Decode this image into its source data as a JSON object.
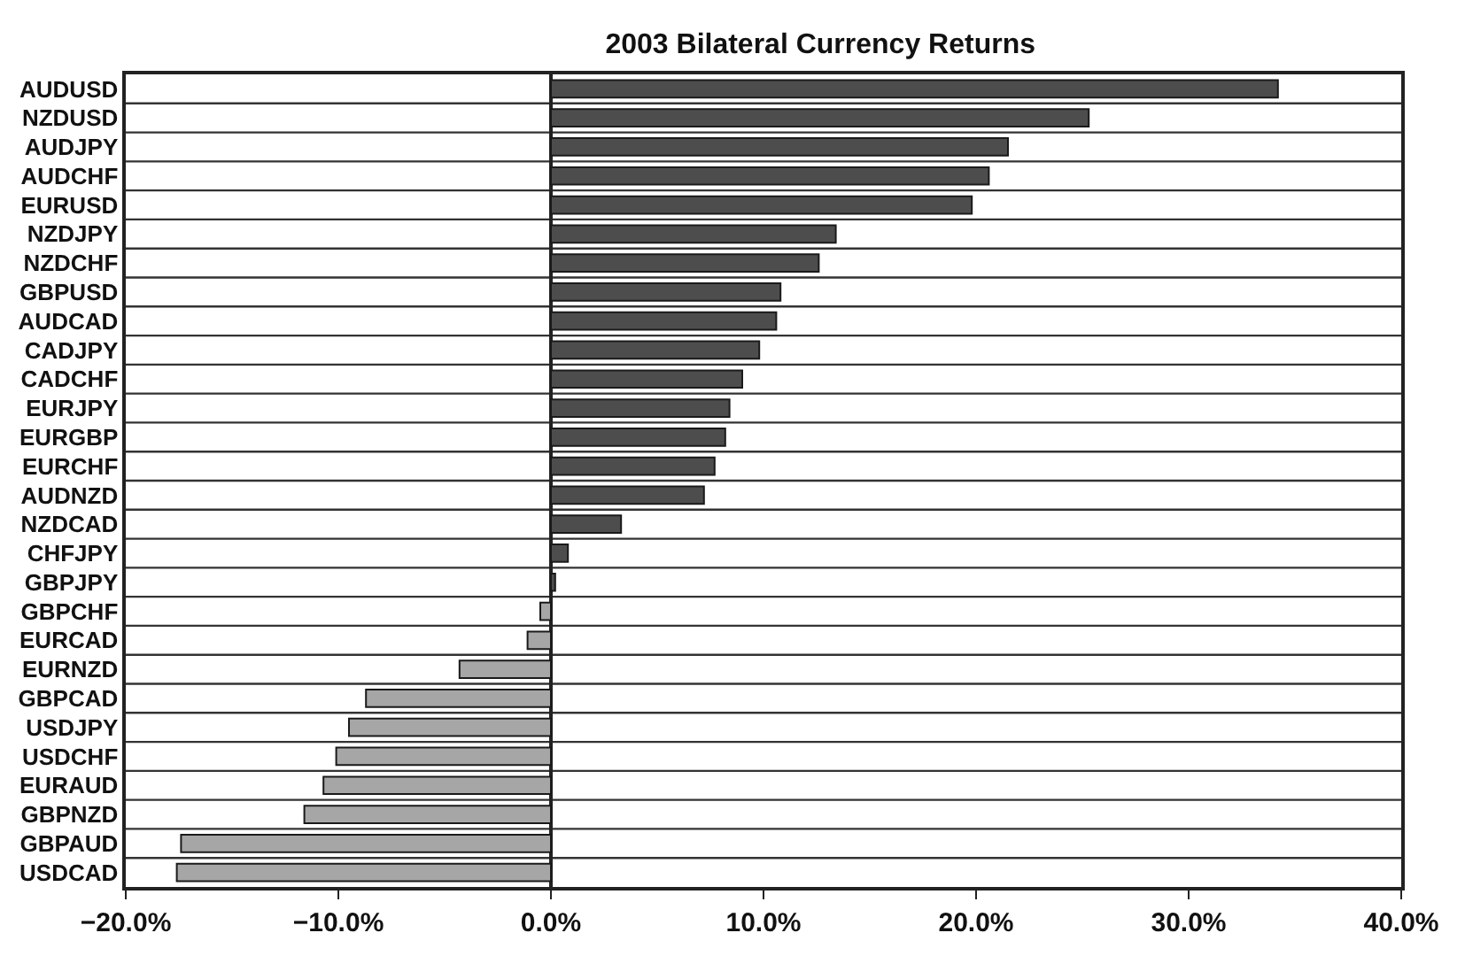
{
  "chart_data": {
    "type": "bar",
    "orientation": "horizontal",
    "title": "2003 Bilateral Currency Returns",
    "categories": [
      "AUDUSD",
      "NZDUSD",
      "AUDJPY",
      "AUDCHF",
      "EURUSD",
      "NZDJPY",
      "NZDCHF",
      "GBPUSD",
      "AUDCAD",
      "CADJPY",
      "CADCHF",
      "EURJPY",
      "EURGBP",
      "EURCHF",
      "AUDNZD",
      "NZDCAD",
      "CHFJPY",
      "GBPJPY",
      "GBPCHF",
      "EURCAD",
      "EURNZD",
      "GBPCAD",
      "USDJPY",
      "USDCHF",
      "EURAUD",
      "GBPNZD",
      "GBPAUD",
      "USDCAD"
    ],
    "values": [
      34.2,
      25.3,
      21.5,
      20.6,
      19.8,
      13.4,
      12.6,
      10.8,
      10.6,
      9.8,
      9.0,
      8.4,
      8.2,
      7.7,
      7.2,
      3.3,
      0.8,
      0.2,
      -0.5,
      -1.1,
      -4.3,
      -8.7,
      -9.5,
      -10.1,
      -10.7,
      -11.6,
      -17.4,
      -17.6
    ],
    "colors": [
      "#4d4d4d",
      "#4d4d4d",
      "#4d4d4d",
      "#4d4d4d",
      "#4d4d4d",
      "#4d4d4d",
      "#4d4d4d",
      "#4d4d4d",
      "#4d4d4d",
      "#4d4d4d",
      "#4d4d4d",
      "#4d4d4d",
      "#4d4d4d",
      "#4d4d4d",
      "#4d4d4d",
      "#4d4d4d",
      "#4d4d4d",
      "#4d4d4d",
      "#a6a6a6",
      "#a6a6a6",
      "#a6a6a6",
      "#a6a6a6",
      "#a6a6a6",
      "#a6a6a6",
      "#a6a6a6",
      "#a6a6a6",
      "#a6a6a6",
      "#a6a6a6"
    ],
    "xlim": [
      -20,
      40
    ],
    "xticks": [
      {
        "value": -20,
        "label": "−20.0%"
      },
      {
        "value": -10,
        "label": "−10.0%"
      },
      {
        "value": 0,
        "label": "0.0%"
      },
      {
        "value": 10,
        "label": "10.0%"
      },
      {
        "value": 20,
        "label": "20.0%"
      },
      {
        "value": 30,
        "label": "30.0%"
      },
      {
        "value": 40,
        "label": "40.0%"
      }
    ],
    "grid": "y"
  }
}
